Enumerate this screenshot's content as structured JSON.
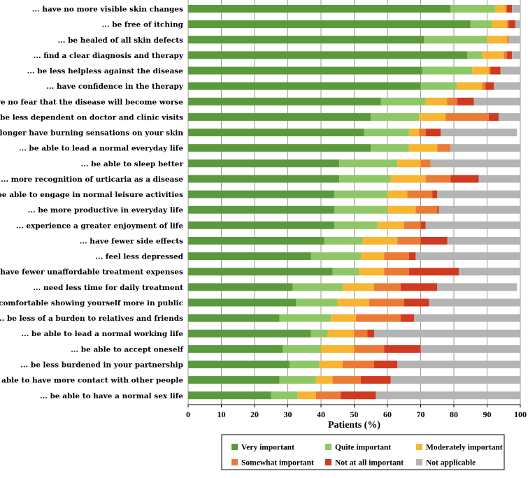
{
  "chart_data": {
    "type": "bar",
    "orientation": "horizontal",
    "stacked": true,
    "title": "",
    "xlabel": "Patients (%)",
    "ylabel": "",
    "xlim": [
      0,
      100
    ],
    "xticks": [
      0,
      10,
      20,
      30,
      40,
      50,
      60,
      70,
      80,
      90,
      100
    ],
    "grid": "vertical",
    "legend_position": "bottom-right",
    "categories": [
      "... have no more visible skin changes",
      "... be free of itching",
      "... be healed of all skin defects",
      "... find a clear diagnosis and therapy",
      "... be less helpless against the disease",
      "... have confidence in the therapy",
      "... have no fear that the disease will become worse",
      "... be less dependent on doctor and clinic visits",
      "... no longer have burning sensations on your skin",
      "... be able to lead a normal everyday life",
      "... be able to sleep better",
      "... more recognition of urticaria as a disease",
      "... be able to engage in normal leisure activities",
      "... be more productive in everyday life",
      "... experience a greater enjoyment of life",
      "... have fewer side effects",
      "... feel less depressed",
      "... have fewer unaffordable treatment expenses",
      "... need less time for daily treatment",
      "... be comfortable showing yourself more in public",
      "... be less of a burden to relatives and friends",
      "... be able to lead a normal working life",
      "... be able to accept oneself",
      "... be less burdened in your partnership",
      "... be able to have more contact with other people",
      "... be able to have a normal sex life"
    ],
    "series": [
      {
        "name": "Very important",
        "color": "#5b9a3c",
        "values": [
          79,
          85,
          71,
          84,
          70.5,
          70,
          58,
          55,
          53,
          55,
          45.5,
          45.5,
          44,
          44,
          44,
          41,
          37,
          43.5,
          31.5,
          32.5,
          27.5,
          37,
          28.5,
          30.5,
          27.5,
          25
        ]
      },
      {
        "name": "Quite important",
        "color": "#8fc766",
        "values": [
          13.5,
          6.5,
          19,
          4.5,
          15,
          11,
          13.5,
          14.5,
          13.5,
          11.5,
          17.5,
          15.5,
          16,
          16,
          13,
          11.5,
          15,
          8,
          15,
          12.5,
          15.5,
          5,
          11.5,
          9,
          11,
          8
        ]
      },
      {
        "name": "Moderately important",
        "color": "#f7b531",
        "values": [
          3,
          4.5,
          6,
          6.5,
          5,
          7.5,
          6.5,
          8,
          3,
          8.5,
          7,
          10.5,
          6,
          8.5,
          8,
          10.5,
          7,
          7.5,
          9.5,
          9.5,
          7.5,
          8,
          10,
          7,
          5,
          5.5
        ]
      },
      {
        "name": "Somewhat important",
        "color": "#ea7b36",
        "values": [
          0.5,
          0.5,
          0.5,
          1,
          0.5,
          1,
          3,
          13,
          2,
          4,
          3,
          7.5,
          7.5,
          6.5,
          5,
          7,
          7.5,
          7.5,
          8,
          10.5,
          13.5,
          4,
          9,
          9.5,
          8.5,
          7.5
        ]
      },
      {
        "name": "Not at all important",
        "color": "#cf3a20",
        "values": [
          1.5,
          2,
          0,
          1.5,
          3,
          2.5,
          5,
          3,
          4.5,
          0,
          0,
          8.5,
          1.5,
          0.5,
          1.5,
          8,
          2,
          15,
          11,
          7.5,
          4,
          2,
          11,
          7,
          9,
          10.5
        ]
      },
      {
        "name": "Not applicable",
        "color": "#b4b4b4",
        "values": [
          2.5,
          1.5,
          3.5,
          2.5,
          6,
          8,
          14,
          6.5,
          23,
          21,
          27,
          12.5,
          25,
          24.5,
          28.5,
          22,
          31.5,
          18.5,
          24,
          27.5,
          32,
          44,
          30,
          37,
          39,
          43.5
        ]
      }
    ]
  }
}
